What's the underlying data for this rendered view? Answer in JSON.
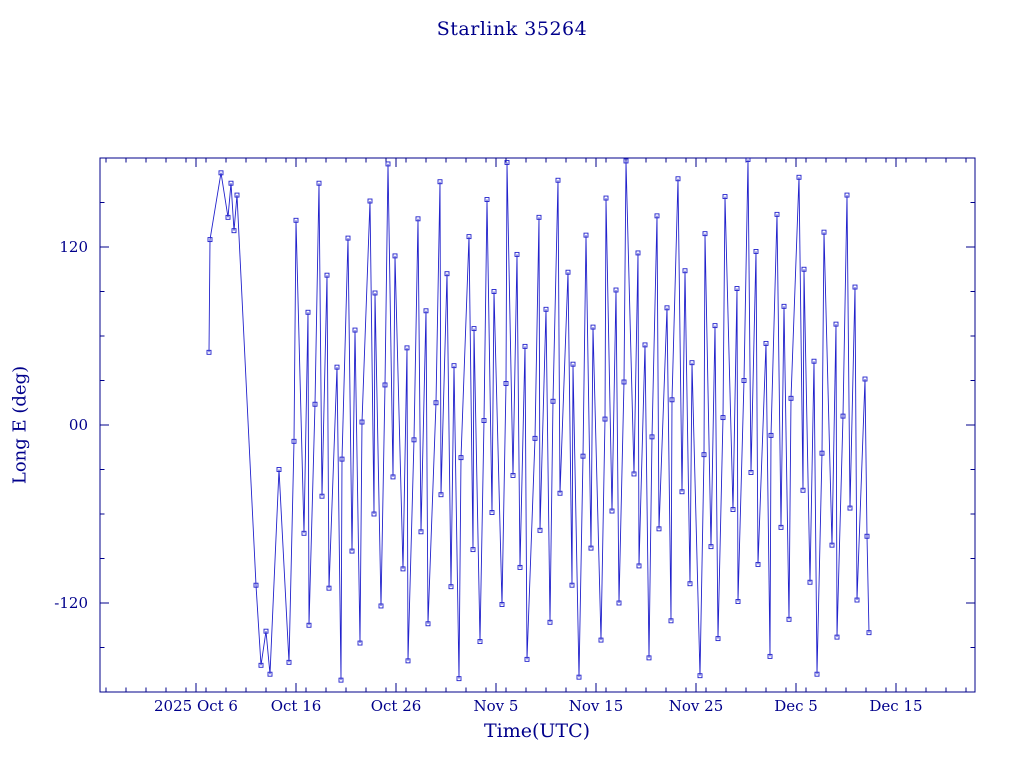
{
  "page": {
    "background": "#ffffff"
  },
  "chart_data": {
    "type": "line",
    "title": "Starlink 35264",
    "xlabel": "Time(UTC)",
    "ylabel": "Long E (deg)",
    "legend": "none",
    "grid": false,
    "colors": {
      "axis": "#00008b",
      "text": "#00008b",
      "data": "#2222cc"
    },
    "x_axis": {
      "unit": "days since 2025-10-01",
      "lim": [
        -4.6,
        82.9
      ],
      "major_ticks": [
        {
          "v": 5,
          "label": "2025 Oct 6"
        },
        {
          "v": 15,
          "label": "Oct 16"
        },
        {
          "v": 25,
          "label": "Oct 26"
        },
        {
          "v": 35,
          "label": "Nov 5"
        },
        {
          "v": 45,
          "label": "Nov 15"
        },
        {
          "v": 55,
          "label": "Nov 25"
        },
        {
          "v": 65,
          "label": "Dec 5"
        },
        {
          "v": 75,
          "label": "Dec 15"
        }
      ],
      "minor_step": 2
    },
    "y_axis": {
      "unit": "degrees east longitude",
      "lim": [
        -180,
        180
      ],
      "major_ticks": [
        {
          "v": 120,
          "label": "120"
        },
        {
          "v": 0,
          "label": "00"
        },
        {
          "v": -120,
          "label": "-120"
        }
      ],
      "minor_step": 30
    },
    "series": [
      {
        "name": "Long E",
        "marker": "open-square",
        "points": [
          [
            6.3,
            49
          ],
          [
            6.4,
            125
          ],
          [
            7.5,
            170
          ],
          [
            8.2,
            140
          ],
          [
            8.5,
            163
          ],
          [
            8.8,
            131
          ],
          [
            9.1,
            155
          ],
          [
            11.0,
            -108
          ],
          [
            11.5,
            -162
          ],
          [
            12.0,
            -139
          ],
          [
            12.4,
            -168
          ],
          [
            13.3,
            -30
          ],
          [
            14.3,
            -160
          ],
          [
            14.8,
            -11
          ],
          [
            15.0,
            138
          ],
          [
            15.8,
            -73
          ],
          [
            16.2,
            76
          ],
          [
            16.3,
            -135
          ],
          [
            16.9,
            14
          ],
          [
            17.3,
            163
          ],
          [
            17.6,
            -48
          ],
          [
            18.1,
            101
          ],
          [
            18.3,
            -110
          ],
          [
            19.1,
            39
          ],
          [
            19.5,
            -172
          ],
          [
            19.6,
            -23
          ],
          [
            20.2,
            126
          ],
          [
            20.6,
            -85
          ],
          [
            20.9,
            64
          ],
          [
            21.4,
            -147
          ],
          [
            21.6,
            2
          ],
          [
            22.4,
            151
          ],
          [
            22.8,
            -60
          ],
          [
            22.9,
            89
          ],
          [
            23.5,
            -122
          ],
          [
            23.9,
            27
          ],
          [
            24.2,
            176
          ],
          [
            24.7,
            -35
          ],
          [
            24.9,
            114
          ],
          [
            25.7,
            -97
          ],
          [
            26.1,
            52
          ],
          [
            26.2,
            -159
          ],
          [
            26.8,
            -10
          ],
          [
            27.2,
            139
          ],
          [
            27.5,
            -72
          ],
          [
            28.0,
            77
          ],
          [
            28.2,
            -134
          ],
          [
            29.0,
            15
          ],
          [
            29.4,
            164
          ],
          [
            29.5,
            -47
          ],
          [
            30.1,
            102
          ],
          [
            30.5,
            -109
          ],
          [
            30.8,
            40
          ],
          [
            31.3,
            -171
          ],
          [
            31.5,
            -22
          ],
          [
            32.3,
            127
          ],
          [
            32.7,
            -84
          ],
          [
            32.8,
            65
          ],
          [
            33.4,
            -146
          ],
          [
            33.8,
            3
          ],
          [
            34.1,
            152
          ],
          [
            34.6,
            -59
          ],
          [
            34.8,
            90
          ],
          [
            35.6,
            -121
          ],
          [
            36.0,
            28
          ],
          [
            36.1,
            177
          ],
          [
            36.7,
            -34
          ],
          [
            37.1,
            115
          ],
          [
            37.4,
            -96
          ],
          [
            37.9,
            53
          ],
          [
            38.1,
            -158
          ],
          [
            38.9,
            -9
          ],
          [
            39.3,
            140
          ],
          [
            39.4,
            -71
          ],
          [
            40.0,
            78
          ],
          [
            40.4,
            -133
          ],
          [
            40.7,
            16
          ],
          [
            41.2,
            165
          ],
          [
            41.4,
            -46
          ],
          [
            42.2,
            103
          ],
          [
            42.6,
            -108
          ],
          [
            42.7,
            41
          ],
          [
            43.3,
            -170
          ],
          [
            43.7,
            -21
          ],
          [
            44.0,
            128
          ],
          [
            44.5,
            -83
          ],
          [
            44.7,
            66
          ],
          [
            45.5,
            -145
          ],
          [
            45.9,
            4
          ],
          [
            46.0,
            153
          ],
          [
            46.6,
            -58
          ],
          [
            47.0,
            91
          ],
          [
            47.3,
            -120
          ],
          [
            47.8,
            29
          ],
          [
            48.0,
            178
          ],
          [
            48.8,
            -33
          ],
          [
            49.2,
            116
          ],
          [
            49.3,
            -95
          ],
          [
            49.9,
            54
          ],
          [
            50.3,
            -157
          ],
          [
            50.6,
            -8
          ],
          [
            51.1,
            141
          ],
          [
            51.3,
            -70
          ],
          [
            52.1,
            79
          ],
          [
            52.5,
            -132
          ],
          [
            52.6,
            17
          ],
          [
            53.2,
            166
          ],
          [
            53.6,
            -45
          ],
          [
            53.9,
            104
          ],
          [
            54.4,
            -107
          ],
          [
            54.6,
            42
          ],
          [
            55.4,
            -169
          ],
          [
            55.8,
            -20
          ],
          [
            55.9,
            129
          ],
          [
            56.5,
            -82
          ],
          [
            56.9,
            67
          ],
          [
            57.2,
            -144
          ],
          [
            57.7,
            5
          ],
          [
            57.9,
            154
          ],
          [
            58.7,
            -57
          ],
          [
            59.1,
            92
          ],
          [
            59.2,
            -119
          ],
          [
            59.8,
            30
          ],
          [
            60.2,
            179
          ],
          [
            60.5,
            -32
          ],
          [
            61.0,
            117
          ],
          [
            61.2,
            -94
          ],
          [
            62.0,
            55
          ],
          [
            62.4,
            -156
          ],
          [
            62.5,
            -7
          ],
          [
            63.1,
            142
          ],
          [
            63.5,
            -69
          ],
          [
            63.8,
            80
          ],
          [
            64.3,
            -131
          ],
          [
            64.5,
            18
          ],
          [
            65.3,
            167
          ],
          [
            65.7,
            -44
          ],
          [
            65.8,
            105
          ],
          [
            66.4,
            -106
          ],
          [
            66.8,
            43
          ],
          [
            67.1,
            -168
          ],
          [
            67.6,
            -19
          ],
          [
            67.8,
            130
          ],
          [
            68.6,
            -81
          ],
          [
            69.0,
            68
          ],
          [
            69.1,
            -143
          ],
          [
            69.7,
            6
          ],
          [
            70.1,
            155
          ],
          [
            70.4,
            -56
          ],
          [
            70.9,
            93
          ],
          [
            71.1,
            -118
          ],
          [
            71.9,
            31
          ],
          [
            72.1,
            -75
          ],
          [
            72.3,
            -140
          ]
        ]
      }
    ]
  }
}
